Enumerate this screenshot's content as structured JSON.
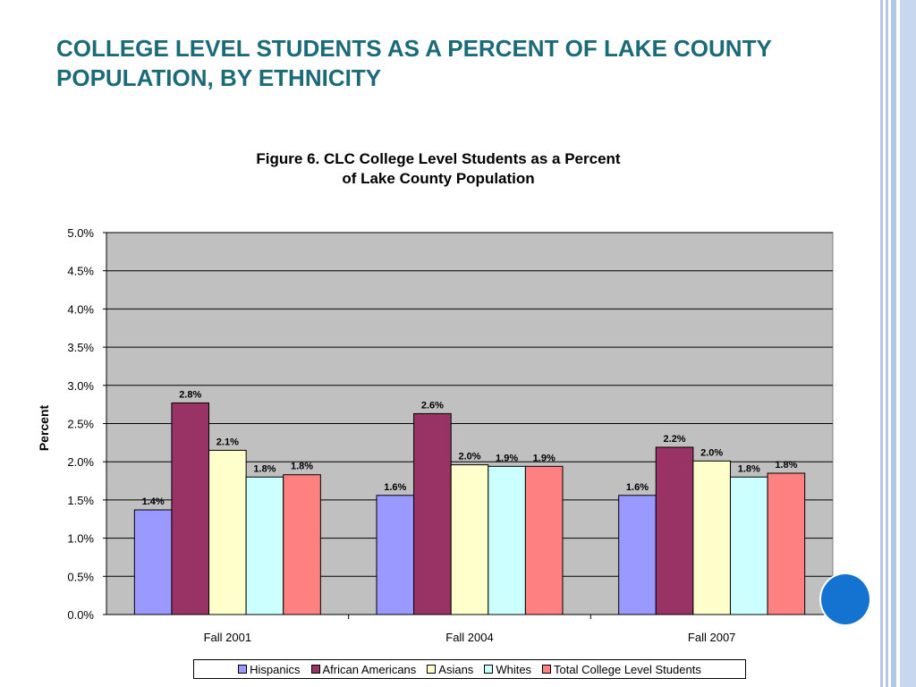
{
  "slide": {
    "title": "COLLEGE LEVEL STUDENTS AS A PERCENT OF LAKE COUNTY POPULATION, BY ETHNICITY"
  },
  "chart_data": {
    "type": "bar",
    "title_line1": "Figure 6.  CLC College Level Students as a Percent",
    "title_line2": "of Lake County Population",
    "xlabel": "",
    "ylabel": "Percent",
    "ylim": [
      0,
      5.0
    ],
    "yticks": [
      "0.0%",
      "0.5%",
      "1.0%",
      "1.5%",
      "2.0%",
      "2.5%",
      "3.0%",
      "3.5%",
      "4.0%",
      "4.5%",
      "5.0%"
    ],
    "grid": true,
    "legend_position": "bottom",
    "categories": [
      "Fall 2001",
      "Fall 2004",
      "Fall 2007"
    ],
    "series": [
      {
        "name": "Hispanics",
        "color": "#9999ff",
        "values": [
          1.37,
          1.56,
          1.56
        ],
        "labels": [
          "1.4%",
          "1.6%",
          "1.6%"
        ]
      },
      {
        "name": "African Americans",
        "color": "#993366",
        "values": [
          2.77,
          2.63,
          2.19
        ],
        "labels": [
          "2.8%",
          "2.6%",
          "2.2%"
        ]
      },
      {
        "name": "Asians",
        "color": "#ffffcc",
        "values": [
          2.15,
          1.96,
          2.01
        ],
        "labels": [
          "2.1%",
          "2.0%",
          "2.0%"
        ]
      },
      {
        "name": "Whites",
        "color": "#ccffff",
        "values": [
          1.8,
          1.94,
          1.8
        ],
        "labels": [
          "1.8%",
          "1.9%",
          "1.8%"
        ]
      },
      {
        "name": "Total College Level Students",
        "color": "#ff8080",
        "values": [
          1.83,
          1.94,
          1.85
        ],
        "labels": [
          "1.8%",
          "1.9%",
          "1.8%"
        ]
      }
    ],
    "plot_background": "#c0c0c0"
  },
  "decor": {
    "border_color": "#b4c7e7",
    "accent_dot_color": "#1473d0"
  }
}
